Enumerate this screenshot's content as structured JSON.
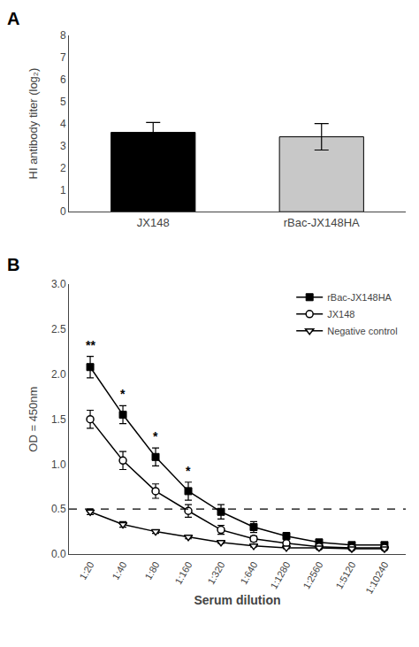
{
  "chart_data": [
    {
      "type": "bar",
      "title": "A",
      "categories": [
        "JX148",
        "rBac-JX148HA"
      ],
      "values": [
        3.6,
        3.4
      ],
      "errors": [
        0.45,
        0.6
      ],
      "colors": [
        "#000000",
        "#c8c8c8"
      ],
      "ylabel": "HI antibody titer (log₂)",
      "ylim": [
        0,
        8
      ],
      "yticks": [
        0,
        1,
        2,
        3,
        4,
        5,
        6,
        7,
        8
      ],
      "grid": false
    },
    {
      "type": "line",
      "title": "B",
      "categories": [
        "1:20",
        "1:40",
        "1:80",
        "1:160",
        "1:320",
        "1:640",
        "1:1280",
        "1:2560",
        "1:5120",
        "1:10240"
      ],
      "series": [
        {
          "name": "rBac-JX148HA",
          "color": "#000000",
          "marker": "square",
          "line_style": "solid",
          "values": [
            2.08,
            1.55,
            1.08,
            0.7,
            0.47,
            0.3,
            0.2,
            0.13,
            0.1,
            0.1
          ],
          "errors": [
            0.12,
            0.1,
            0.1,
            0.1,
            0.08,
            0.06,
            0.04,
            0.02,
            0.02,
            0.02
          ]
        },
        {
          "name": "JX148",
          "color": "#000000",
          "marker": "circle-open",
          "line_style": "solid",
          "values": [
            1.5,
            1.04,
            0.7,
            0.48,
            0.27,
            0.17,
            0.12,
            0.08,
            0.07,
            0.07
          ],
          "errors": [
            0.1,
            0.1,
            0.08,
            0.07,
            0.05,
            0.03,
            0.02,
            0.01,
            0.01,
            0.01
          ]
        },
        {
          "name": "Negative control",
          "color": "#000000",
          "marker": "triangle-down-open",
          "line_style": "solid",
          "values": [
            0.47,
            0.33,
            0.25,
            0.19,
            0.13,
            0.09,
            0.07,
            0.07,
            0.06,
            0.06
          ],
          "errors": [
            0.03,
            0.03,
            0.02,
            0.02,
            0.01,
            0.01,
            0.01,
            0.01,
            0.01,
            0.01
          ]
        }
      ],
      "reference_line": {
        "y": 0.5,
        "color": "#000000",
        "line_style": "dashed"
      },
      "annotations": [
        {
          "x": "1:20",
          "text": "**",
          "series": "rBac-JX148HA"
        },
        {
          "x": "1:40",
          "text": "*",
          "series": "rBac-JX148HA"
        },
        {
          "x": "1:80",
          "text": "*",
          "series": "rBac-JX148HA"
        },
        {
          "x": "1:160",
          "text": "*",
          "series": "rBac-JX148HA"
        }
      ],
      "xlabel": "Serum dilution",
      "ylabel": "OD = 450nm",
      "ylim": [
        0,
        3
      ],
      "yticks": [
        {
          "value": 0,
          "label": "0.0"
        },
        0.5,
        {
          "value": 1,
          "label": "1.0"
        },
        1.5,
        {
          "value": 2,
          "label": "2.0"
        },
        2.5,
        {
          "value": 3,
          "label": "3.0"
        }
      ],
      "legend": "upper right",
      "grid": false
    }
  ]
}
